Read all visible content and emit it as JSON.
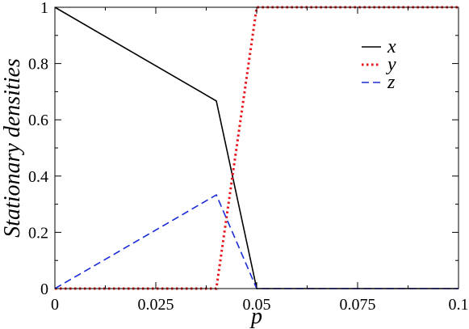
{
  "chart_data": {
    "type": "line",
    "title": "",
    "xlabel": "p",
    "ylabel": "Stationary densities",
    "xlim": [
      0,
      0.1
    ],
    "ylim": [
      0,
      1
    ],
    "xticks": [
      0,
      0.025,
      0.05,
      0.075,
      0.1
    ],
    "xtick_labels": [
      "0",
      "0.025",
      "0.05",
      "0.075",
      "0.1"
    ],
    "yticks": [
      0,
      0.2,
      0.4,
      0.6,
      0.8,
      1
    ],
    "ytick_labels": [
      "0",
      "0.2",
      "0.4",
      "0.6",
      "0.8",
      "1"
    ],
    "grid": false,
    "legend_position": "top-right",
    "series": [
      {
        "name": "x",
        "color": "#000000",
        "style": "solid",
        "x": [
          0,
          0.04,
          0.05,
          0.1
        ],
        "y": [
          1,
          0.667,
          0,
          0
        ]
      },
      {
        "name": "y",
        "color": "#e8141c",
        "style": "dotted",
        "x": [
          0,
          0.04,
          0.05,
          0.1
        ],
        "y": [
          0,
          0,
          1,
          1
        ]
      },
      {
        "name": "z",
        "color": "#1a2bd6",
        "style": "dashed",
        "x": [
          0,
          0.04,
          0.05,
          0.1
        ],
        "y": [
          0,
          0.333,
          0,
          0
        ]
      }
    ]
  }
}
